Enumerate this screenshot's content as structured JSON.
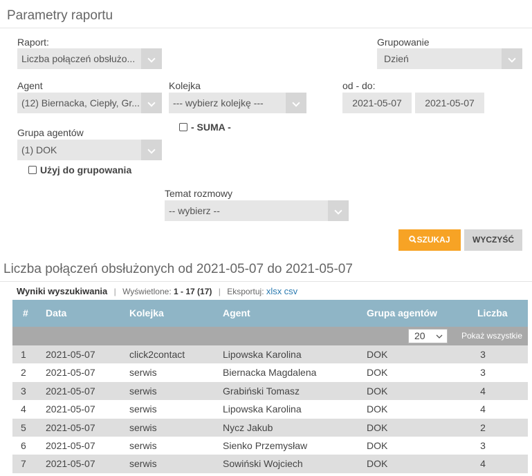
{
  "params": {
    "title": "Parametry raportu",
    "report": {
      "label": "Raport:",
      "value": "Liczba połączeń obsłużo..."
    },
    "grouping": {
      "label": "Grupowanie",
      "value": "Dzień"
    },
    "agent": {
      "label": "Agent",
      "value": "(12) Biernacka, Ciepły, Gr..."
    },
    "queue": {
      "label": "Kolejka",
      "value": "--- wybierz kolejkę ---"
    },
    "date_range": {
      "label": "od - do:",
      "from": "2021-05-07",
      "to": "2021-05-07"
    },
    "sum_checkbox": "- SUMA -",
    "agent_group": {
      "label": "Grupa agentów",
      "value": "(1) DOK"
    },
    "use_grouping": "Użyj do grupowania",
    "topic": {
      "label": "Temat rozmowy",
      "value": "-- wybierz --"
    },
    "buttons": {
      "search": "SZUKAJ",
      "clear": "WYCZYŚĆ"
    }
  },
  "results": {
    "title": "Liczba połączeń obsłużonych od 2021-05-07 do 2021-05-07",
    "toolbar": {
      "label": "Wyniki wyszukiwania",
      "shown_label": "Wyświetlone:",
      "shown_value": "1 - 17 (17)",
      "export_label": "Eksportuj:",
      "export_links": [
        "xlsx",
        "csv"
      ]
    },
    "table": {
      "columns": [
        "#",
        "Data",
        "Kolejka",
        "Agent",
        "Grupa agentów",
        "Liczba"
      ],
      "page_size": "20",
      "show_all": "Pokaż wszystkie",
      "rows": [
        [
          1,
          "2021-05-07",
          "click2contact",
          "Lipowska Karolina",
          "DOK",
          3
        ],
        [
          2,
          "2021-05-07",
          "serwis",
          "Biernacka Magdalena",
          "DOK",
          3
        ],
        [
          3,
          "2021-05-07",
          "serwis",
          "Grabiński Tomasz",
          "DOK",
          4
        ],
        [
          4,
          "2021-05-07",
          "serwis",
          "Lipowska Karolina",
          "DOK",
          4
        ],
        [
          5,
          "2021-05-07",
          "serwis",
          "Nycz Jakub",
          "DOK",
          2
        ],
        [
          6,
          "2021-05-07",
          "serwis",
          "Sienko Przemysław",
          "DOK",
          3
        ],
        [
          7,
          "2021-05-07",
          "serwis",
          "Sowiński Wojciech",
          "DOK",
          4
        ]
      ]
    }
  }
}
